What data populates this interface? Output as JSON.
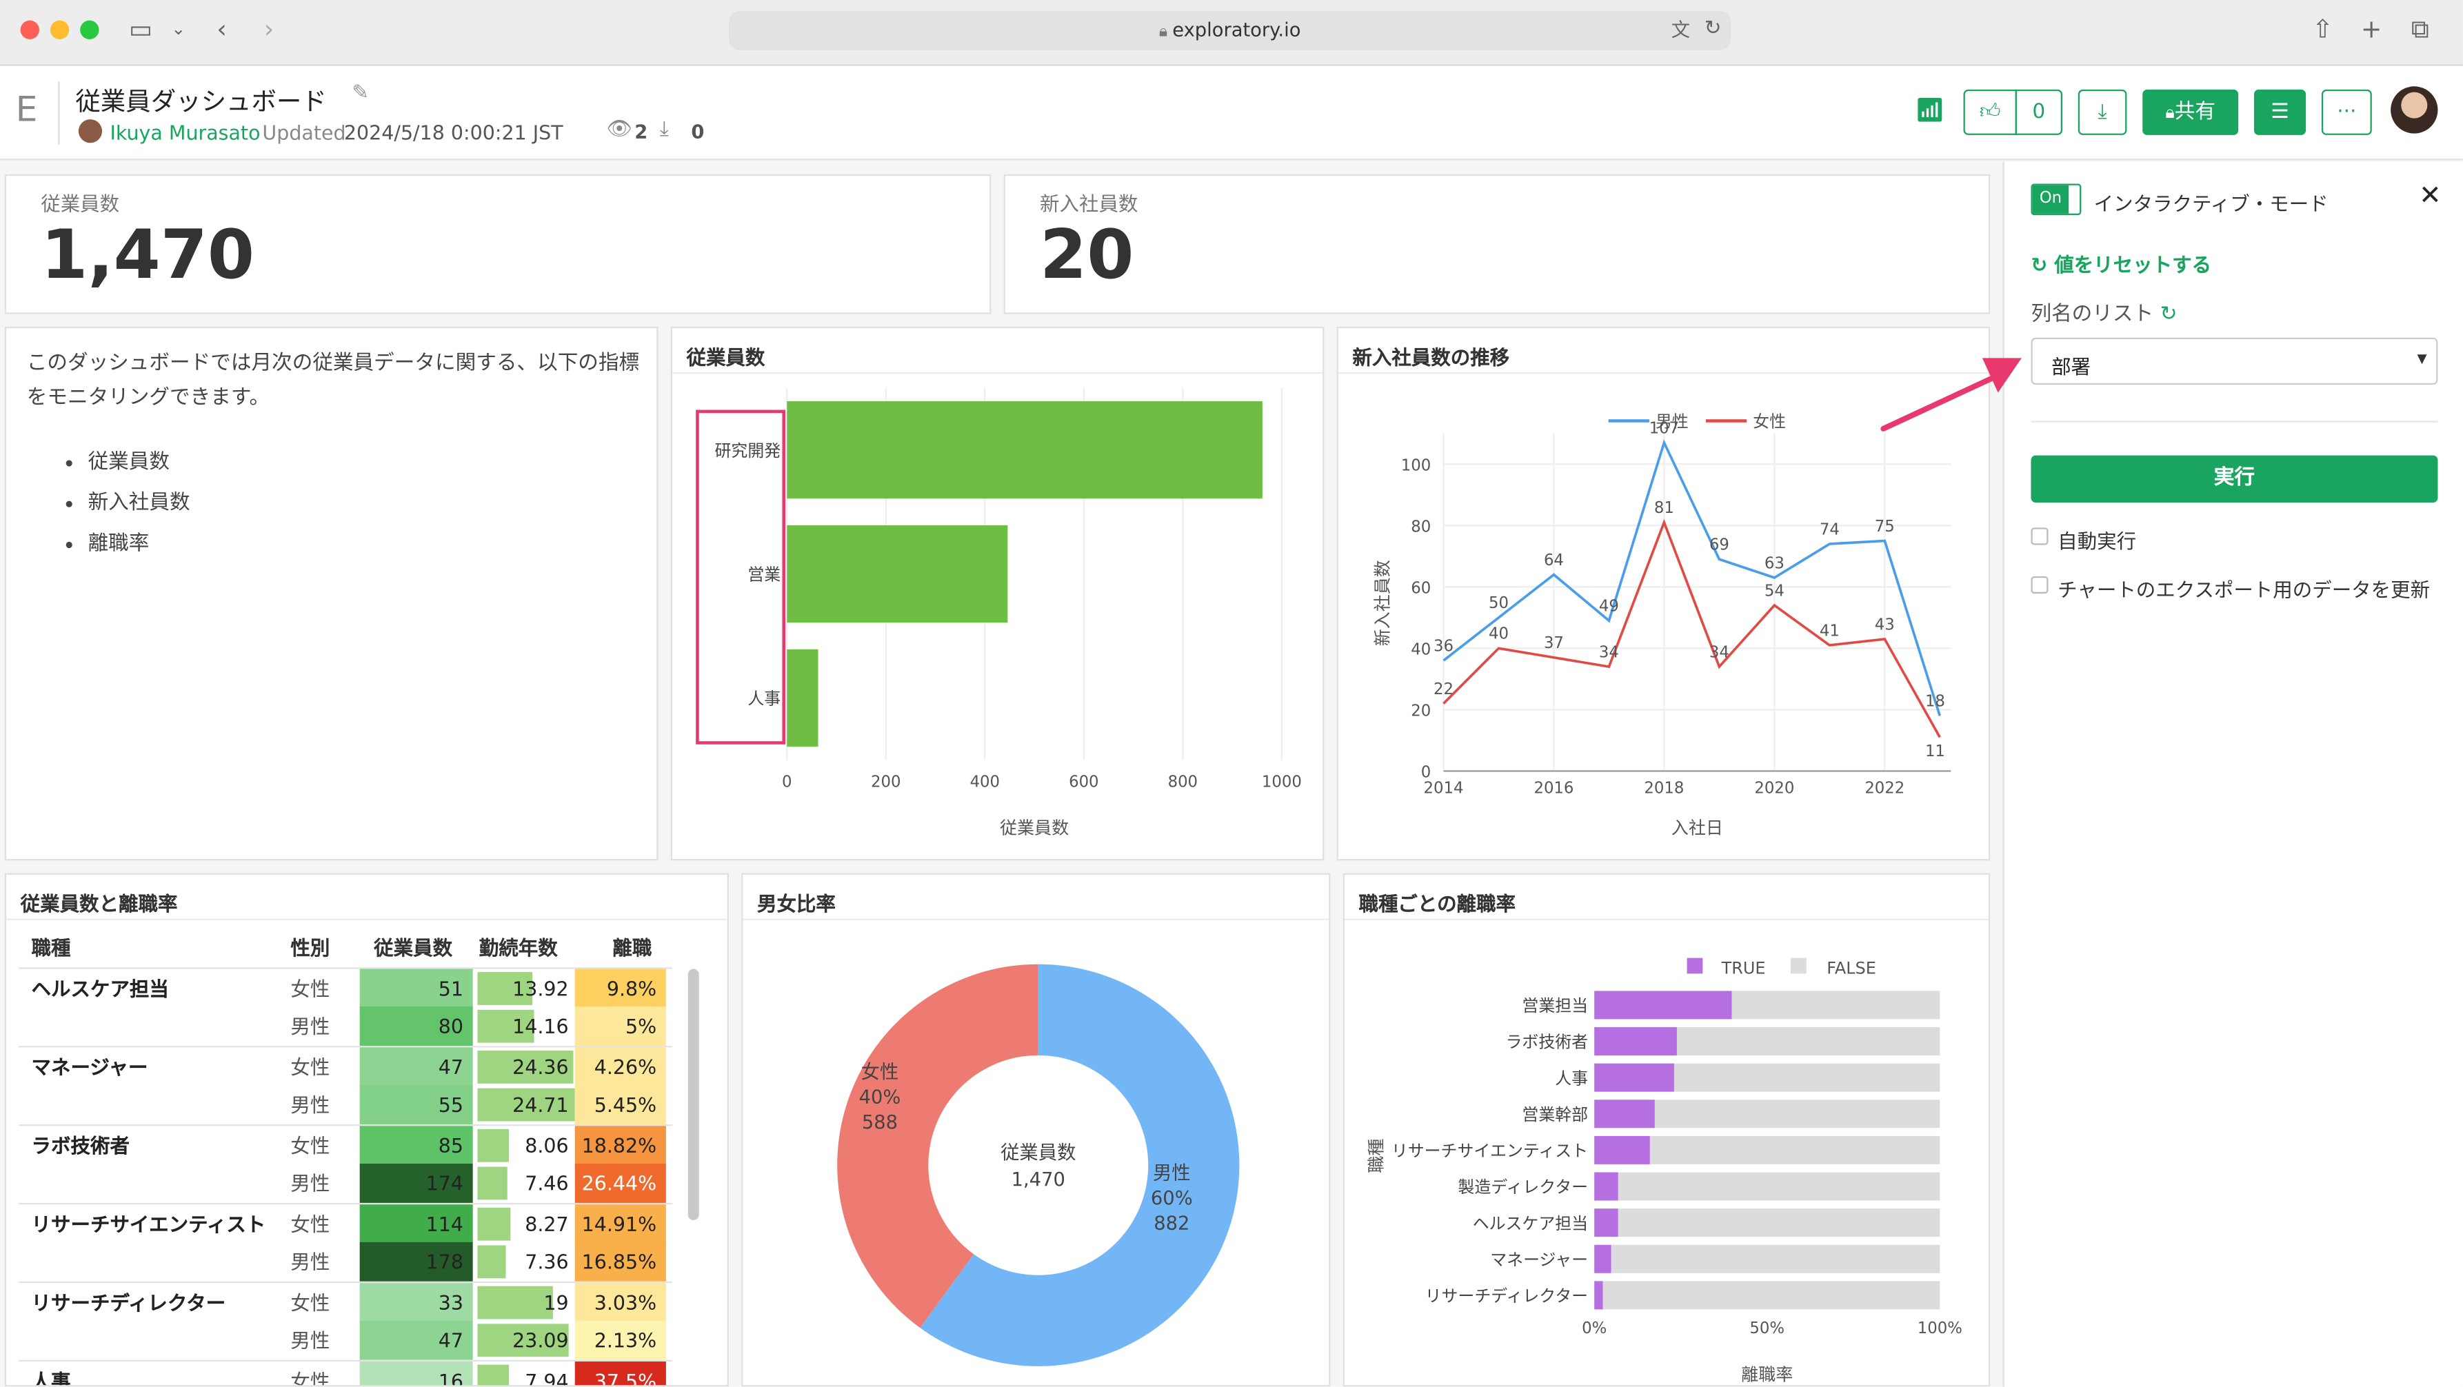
{
  "browser": {
    "url": "exploratory.io"
  },
  "header": {
    "logo": "E",
    "title": "従業員ダッシュボード",
    "author": "Ikuya Murasato",
    "updated_prefix": "Updated",
    "updated": "2024/5/18 0:00:21 JST",
    "views": "2",
    "downloads": "0",
    "likes": "0",
    "share_label": "共有"
  },
  "kpi": {
    "employees_label": "従業員数",
    "employees_value": "1,470",
    "new_label": "新入社員数",
    "new_value": "20"
  },
  "intro": {
    "text": "このダッシュボードでは月次の従業員データに関する、以下の指標をモニタリングできます。",
    "bullets": [
      "従業員数",
      "新入社員数",
      "離職率"
    ]
  },
  "bar_card": {
    "title": "従業員数"
  },
  "line_card": {
    "title": "新入社員数の推移"
  },
  "table_card": {
    "title": "従業員数と離職率",
    "headers": [
      "職種",
      "性別",
      "従業員数",
      "勤続年数",
      "離職"
    ],
    "rows": [
      {
        "job": "ヘルスケア担当",
        "sex": "女性",
        "count": "51",
        "years": "13.92",
        "rate": "9.8%",
        "c": 51,
        "y": 13.92,
        "r": 9.8
      },
      {
        "job": "",
        "sex": "男性",
        "count": "80",
        "years": "14.16",
        "rate": "5%",
        "c": 80,
        "y": 14.16,
        "r": 5
      },
      {
        "job": "マネージャー",
        "sex": "女性",
        "count": "47",
        "years": "24.36",
        "rate": "4.26%",
        "c": 47,
        "y": 24.36,
        "r": 4.26
      },
      {
        "job": "",
        "sex": "男性",
        "count": "55",
        "years": "24.71",
        "rate": "5.45%",
        "c": 55,
        "y": 24.71,
        "r": 5.45
      },
      {
        "job": "ラボ技術者",
        "sex": "女性",
        "count": "85",
        "years": "8.06",
        "rate": "18.82%",
        "c": 85,
        "y": 8.06,
        "r": 18.82
      },
      {
        "job": "",
        "sex": "男性",
        "count": "174",
        "years": "7.46",
        "rate": "26.44%",
        "c": 174,
        "y": 7.46,
        "r": 26.44
      },
      {
        "job": "リサーチサイエンティスト",
        "sex": "女性",
        "count": "114",
        "years": "8.27",
        "rate": "14.91%",
        "c": 114,
        "y": 8.27,
        "r": 14.91
      },
      {
        "job": "",
        "sex": "男性",
        "count": "178",
        "years": "7.36",
        "rate": "16.85%",
        "c": 178,
        "y": 7.36,
        "r": 16.85
      },
      {
        "job": "リサーチディレクター",
        "sex": "女性",
        "count": "33",
        "years": "19",
        "rate": "3.03%",
        "c": 33,
        "y": 19,
        "r": 3.03
      },
      {
        "job": "",
        "sex": "男性",
        "count": "47",
        "years": "23.09",
        "rate": "2.13%",
        "c": 47,
        "y": 23.09,
        "r": 2.13
      },
      {
        "job": "人事",
        "sex": "女性",
        "count": "16",
        "years": "7.94",
        "rate": "37.5%",
        "c": 16,
        "y": 7.94,
        "r": 37.5
      }
    ]
  },
  "donut_card": {
    "title": "男女比率"
  },
  "attr_card": {
    "title": "職種ごとの離職率"
  },
  "sidebar": {
    "toggle": "On",
    "mode_label": "インタラクティブ・モード",
    "reset_label": "値をリセットする",
    "list_label": "列名のリスト",
    "select_value": "部署",
    "run_label": "実行",
    "auto_label": "自動実行",
    "export_label": "チャートのエクスポート用のデータを更新"
  },
  "colors": {
    "accent": "#19a55f",
    "bar": "#6fbe44",
    "male": "#4a9de8",
    "female": "#e04b45",
    "donut_male": "#73b6f5",
    "donut_female": "#ee7b71",
    "true": "#b66fe0",
    "false": "#dcdcdc",
    "highlight": "#e8386d"
  },
  "chart_data": [
    {
      "type": "bar",
      "title": "従業員数",
      "orientation": "horizontal",
      "categories": [
        "研究開発",
        "営業",
        "人事"
      ],
      "values": [
        961,
        446,
        63
      ],
      "xlabel": "従業員数",
      "xlim": [
        0,
        1000
      ],
      "xticks": [
        0,
        200,
        400,
        600,
        800,
        1000
      ]
    },
    {
      "type": "line",
      "title": "新入社員数の推移",
      "xlabel": "入社日",
      "ylabel": "新入社員数",
      "x": [
        2014,
        2015,
        2016,
        2017,
        2018,
        2019,
        2020,
        2021,
        2022,
        2023
      ],
      "xlim": [
        2014,
        2023.2
      ],
      "ylim": [
        0,
        110
      ],
      "xticks": [
        2014,
        2016,
        2018,
        2020,
        2022
      ],
      "yticks": [
        0,
        20,
        40,
        60,
        80,
        100
      ],
      "legend": "top",
      "series": [
        {
          "name": "男性",
          "values": [
            36,
            50,
            64,
            49,
            107,
            69,
            63,
            74,
            75,
            18
          ]
        },
        {
          "name": "女性",
          "values": [
            22,
            40,
            37,
            34,
            81,
            34,
            54,
            41,
            43,
            11
          ]
        }
      ]
    },
    {
      "type": "pie",
      "title": "男女比率",
      "center_label": "従業員数",
      "center_value": "1,470",
      "slices": [
        {
          "name": "男性",
          "percent": "60%",
          "value": 882
        },
        {
          "name": "女性",
          "percent": "40%",
          "value": 588
        }
      ]
    },
    {
      "type": "bar",
      "title": "職種ごとの離職率",
      "stacked": "percent",
      "orientation": "horizontal",
      "xlabel": "離職率",
      "ylabel": "職種",
      "legend": "top",
      "categories": [
        "営業担当",
        "ラボ技術者",
        "人事",
        "営業幹部",
        "リサーチサイエンティスト",
        "製造ディレクター",
        "ヘルスケア担当",
        "マネージャー",
        "リサーチディレクター"
      ],
      "series": [
        {
          "name": "TRUE",
          "values": [
            39.8,
            23.9,
            23.1,
            17.5,
            16.1,
            6.9,
            6.9,
            4.9,
            2.5
          ]
        },
        {
          "name": "FALSE",
          "values": [
            60.2,
            76.1,
            76.9,
            82.5,
            83.9,
            93.1,
            93.1,
            95.1,
            97.5
          ]
        }
      ],
      "xticks": [
        "0%",
        "50%",
        "100%"
      ]
    }
  ]
}
